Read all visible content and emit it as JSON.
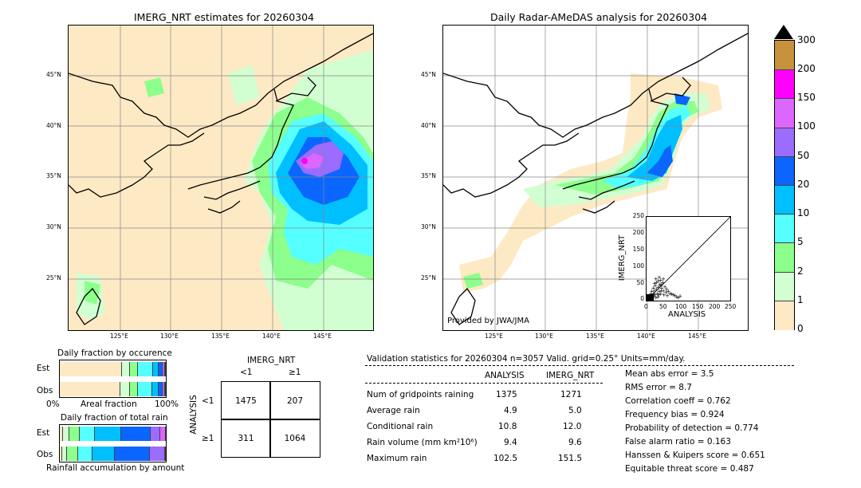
{
  "left_map": {
    "title": "IMERG_NRT estimates for 20260304",
    "lat_labels": [
      "45°N",
      "40°N",
      "35°N",
      "30°N",
      "25°N"
    ],
    "lon_labels": [
      "125°E",
      "130°E",
      "135°E",
      "140°E",
      "145°E"
    ]
  },
  "right_map": {
    "title": "Daily Radar-AMeDAS analysis for 20260304",
    "lat_labels": [
      "45°N",
      "40°N",
      "35°N",
      "30°N",
      "25°N"
    ],
    "lon_labels": [
      "125°E",
      "130°E",
      "135°E",
      "140°E",
      "145°E"
    ],
    "provider": "Provided by JWA/JMA"
  },
  "colorbar": {
    "ticks": [
      "300",
      "200",
      "150",
      "100",
      "50",
      "20",
      "10",
      "5",
      "2",
      "1",
      "0"
    ],
    "colors": [
      "#c8913c",
      "#ff00ff",
      "#dd66ff",
      "#9b6cff",
      "#0a66ff",
      "#00bfff",
      "#55ffff",
      "#8cff8c",
      "#d2ffd2",
      "#fde9c4"
    ]
  },
  "chart_data": [
    {
      "type": "scatter",
      "title": "",
      "xlabel": "ANALYSIS",
      "ylabel": "IMERG_NRT",
      "xlim": [
        0,
        250
      ],
      "ylim": [
        0,
        250
      ],
      "xticks": [
        "0",
        "50",
        "100",
        "150",
        "200",
        "250"
      ],
      "yticks": [
        "0",
        "50",
        "100",
        "150",
        "200",
        "250"
      ],
      "points": [
        [
          2,
          1
        ],
        [
          3,
          4
        ],
        [
          5,
          2
        ],
        [
          6,
          8
        ],
        [
          8,
          5
        ],
        [
          10,
          12
        ],
        [
          12,
          6
        ],
        [
          14,
          15
        ],
        [
          15,
          9
        ],
        [
          18,
          3
        ],
        [
          20,
          22
        ],
        [
          22,
          14
        ],
        [
          24,
          30
        ],
        [
          25,
          18
        ],
        [
          28,
          10
        ],
        [
          30,
          35
        ],
        [
          32,
          22
        ],
        [
          34,
          12
        ],
        [
          35,
          40
        ],
        [
          38,
          28
        ],
        [
          40,
          45
        ],
        [
          42,
          20
        ],
        [
          45,
          38
        ],
        [
          48,
          55
        ],
        [
          50,
          30
        ],
        [
          52,
          18
        ],
        [
          55,
          42
        ],
        [
          58,
          25
        ],
        [
          60,
          35
        ],
        [
          62,
          15
        ],
        [
          65,
          28
        ],
        [
          70,
          22
        ],
        [
          75,
          20
        ],
        [
          80,
          18
        ],
        [
          85,
          15
        ],
        [
          90,
          12
        ],
        [
          95,
          10
        ],
        [
          100,
          14
        ],
        [
          30,
          55
        ],
        [
          35,
          60
        ],
        [
          40,
          50
        ],
        [
          45,
          48
        ],
        [
          28,
          65
        ],
        [
          38,
          70
        ],
        [
          42,
          62
        ],
        [
          26,
          45
        ],
        [
          20,
          38
        ],
        [
          16,
          28
        ],
        [
          12,
          20
        ],
        [
          8,
          14
        ],
        [
          44,
          30
        ],
        [
          36,
          18
        ],
        [
          50,
          65
        ],
        [
          24,
          52
        ]
      ]
    },
    {
      "type": "bar",
      "title": "Daily fraction by occurence",
      "categories": [
        "Est",
        "Obs"
      ],
      "xlabel": "Areal fraction",
      "xtick_labels": [
        "0%",
        "100%"
      ],
      "series": [
        {
          "values": [
            0.59,
            0.57
          ]
        },
        {
          "values": [
            0.07,
            0.09
          ]
        },
        {
          "values": [
            0.08,
            0.08
          ]
        },
        {
          "values": [
            0.14,
            0.13
          ]
        },
        {
          "values": [
            0.05,
            0.06
          ]
        },
        {
          "values": [
            0.04,
            0.04
          ]
        },
        {
          "values": [
            0.02,
            0.02
          ]
        },
        {
          "values": [
            0.01,
            0.01
          ]
        }
      ]
    },
    {
      "type": "bar",
      "title": "Daily fraction of total rain",
      "categories": [
        "Est",
        "Obs"
      ],
      "xlabel": "Rainfall accumulation by amount",
      "series": [
        {
          "values": [
            0.03,
            0.02
          ]
        },
        {
          "values": [
            0.06,
            0.05
          ]
        },
        {
          "values": [
            0.1,
            0.1
          ]
        },
        {
          "values": [
            0.14,
            0.14
          ]
        },
        {
          "values": [
            0.25,
            0.21
          ]
        },
        {
          "values": [
            0.28,
            0.33
          ]
        },
        {
          "values": [
            0.09,
            0.14
          ]
        },
        {
          "values": [
            0.05,
            0.01
          ]
        }
      ]
    }
  ],
  "contingency": {
    "title": "IMERG_NRT",
    "col_labels": [
      "<1",
      "≥1"
    ],
    "row_labels": [
      "<1",
      "≥1"
    ],
    "row_axis_label": "ANALYSIS",
    "cells": [
      "1475",
      "207",
      "311",
      "1064"
    ]
  },
  "stats": {
    "header": "Validation statistics for 20260304  n=3057 Valid. grid=0.25° Units=mm/day.",
    "col_analysis": "ANALYSIS",
    "col_imerg": "IMERG_NRT",
    "rows": [
      {
        "label": "Num of gridpoints raining",
        "analysis": "1375",
        "imerg": "1271"
      },
      {
        "label": "Average rain",
        "analysis": "4.9",
        "imerg": "5.0"
      },
      {
        "label": "Conditional rain",
        "analysis": "10.8",
        "imerg": "12.0"
      },
      {
        "label": "Rain volume (mm km²10⁶)",
        "analysis": "9.4",
        "imerg": "9.6"
      },
      {
        "label": "Maximum rain",
        "analysis": "102.5",
        "imerg": "151.5"
      }
    ],
    "right": [
      "Mean abs error =    3.5",
      "RMS error =    8.7",
      "Correlation coeff =  0.762",
      "Frequency bias =  0.924",
      "Probability of detection =  0.774",
      "False alarm ratio =  0.163",
      "Hanssen & Kuipers score =  0.651",
      "Equitable threat score =  0.487"
    ]
  }
}
